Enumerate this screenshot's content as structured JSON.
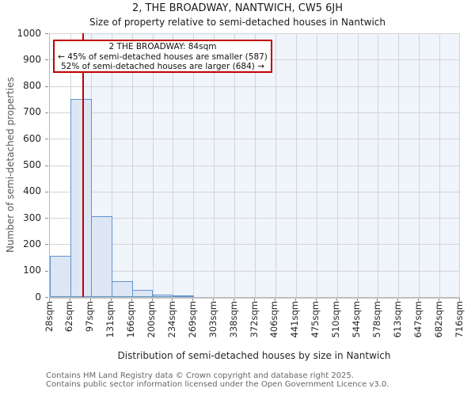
{
  "footer": {
    "line1": "Contains HM Land Registry data © Crown copyright and database right 2025.",
    "line2": "Contains public sector information licensed under the Open Government Licence v3.0."
  },
  "chart_data": {
    "type": "bar",
    "title": "2, THE BROADWAY, NANTWICH, CW5 6JH",
    "subtitle": "Size of property relative to semi-detached houses in Nantwich",
    "xlabel": "Distribution of semi-detached houses by size in Nantwich",
    "ylabel": "Number of semi-detached properties",
    "categories": [
      "28sqm",
      "62sqm",
      "97sqm",
      "131sqm",
      "166sqm",
      "200sqm",
      "234sqm",
      "269sqm",
      "303sqm",
      "338sqm",
      "372sqm",
      "406sqm",
      "441sqm",
      "475sqm",
      "510sqm",
      "544sqm",
      "578sqm",
      "613sqm",
      "647sqm",
      "682sqm",
      "716sqm"
    ],
    "values": [
      155,
      750,
      305,
      60,
      27,
      8,
      5,
      0,
      0,
      0,
      0,
      0,
      0,
      0,
      0,
      0,
      0,
      0,
      0,
      0
    ],
    "yticks": [
      0,
      100,
      200,
      300,
      400,
      500,
      600,
      700,
      800,
      900,
      1000
    ],
    "ylim": [
      0,
      1000
    ],
    "xlim_sqm": [
      28,
      716
    ],
    "marker_sqm": 84,
    "grid": true,
    "legend": "none",
    "annotation": {
      "line1": "2 THE BROADWAY: 84sqm",
      "line2": "← 45% of semi-detached houses are smaller (587)",
      "line3": "52% of semi-detached houses are larger (684) →"
    },
    "colors": {
      "bar_fill": "#dce6f4",
      "bar_border": "#6094d1",
      "marker_line": "#c00000",
      "annotation_border": "#c00000",
      "shade": "#f0f4fb",
      "grid": "#d4d4d4"
    }
  }
}
